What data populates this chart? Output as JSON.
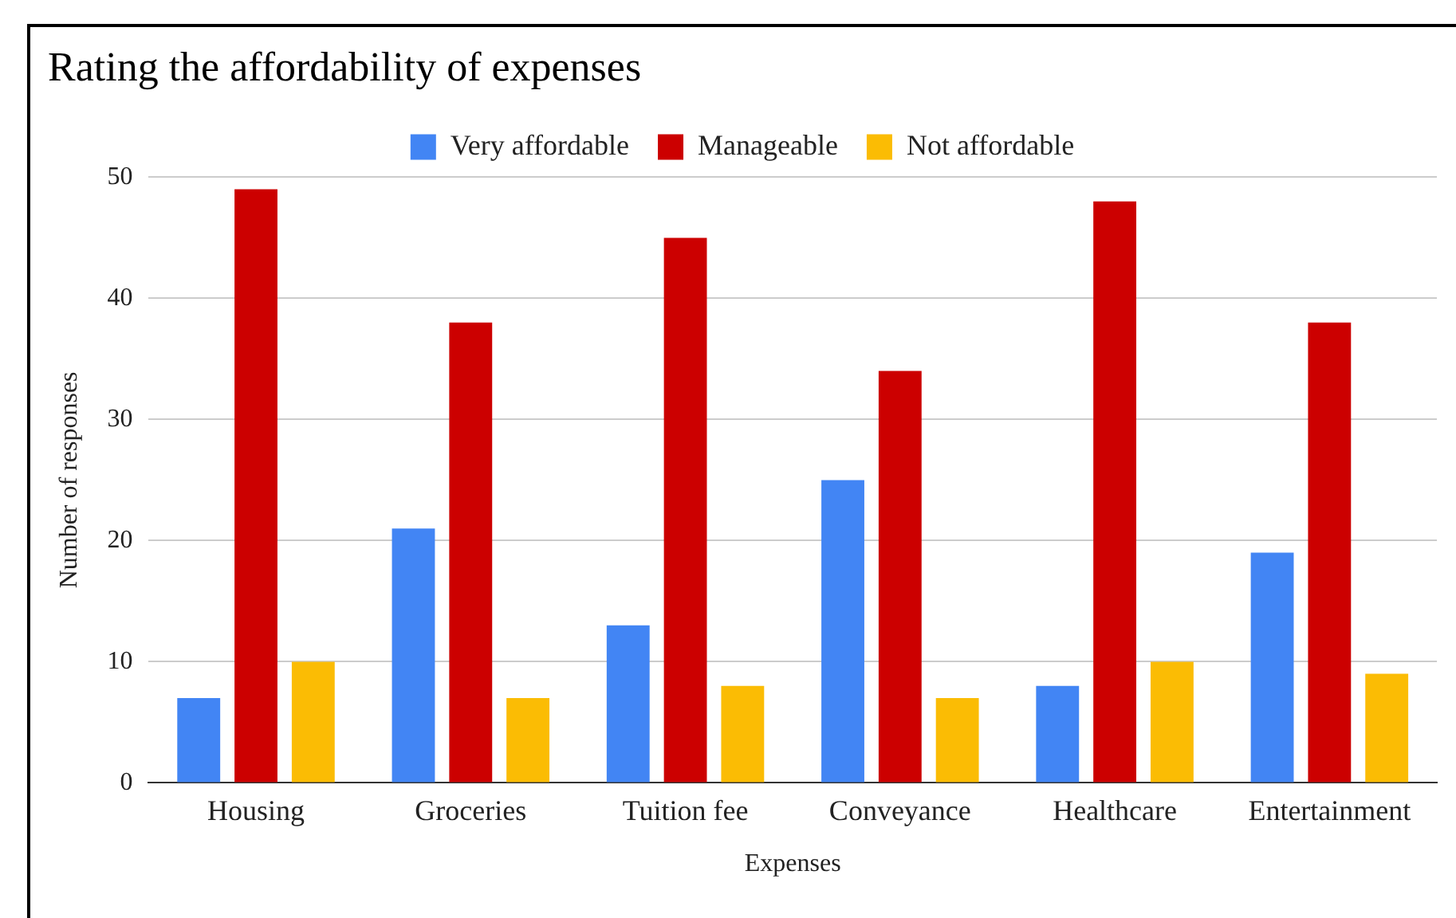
{
  "chart_data": {
    "type": "bar",
    "title": "Rating the affordability of expenses",
    "xlabel": "Expenses",
    "ylabel": "Number of responses",
    "categories": [
      "Housing",
      "Groceries",
      "Tuition fee",
      "Conveyance",
      "Healthcare",
      "Entertainment"
    ],
    "series": [
      {
        "name": "Very affordable",
        "color": "#4285f4",
        "values": [
          7,
          21,
          13,
          25,
          8,
          19
        ]
      },
      {
        "name": "Manageable",
        "color": "#cc0000",
        "values": [
          49,
          38,
          45,
          34,
          48,
          38
        ]
      },
      {
        "name": "Not affordable",
        "color": "#fbbc04",
        "values": [
          10,
          7,
          8,
          7,
          10,
          9
        ]
      }
    ],
    "ylim": [
      0,
      50
    ],
    "yticks": [
      0,
      10,
      20,
      30,
      40,
      50
    ],
    "grid": "y",
    "legend": "top"
  }
}
